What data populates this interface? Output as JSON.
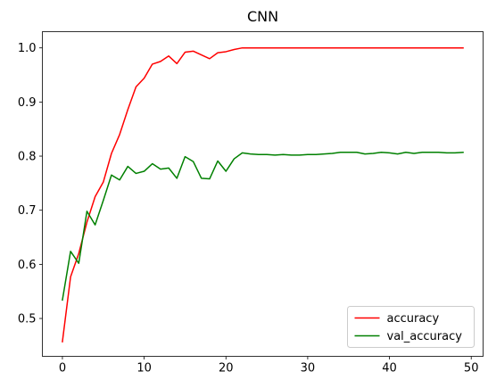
{
  "chart_data": {
    "type": "line",
    "title": "CNN",
    "xlabel": "",
    "ylabel": "",
    "xlim": [
      -2.45,
      51.45
    ],
    "ylim": [
      0.43,
      1.03
    ],
    "xticks": [
      0,
      10,
      20,
      30,
      40,
      50
    ],
    "yticks": [
      0.5,
      0.6,
      0.7,
      0.8,
      0.9,
      1.0
    ],
    "ytick_labels": [
      "0.5",
      "0.6",
      "0.7",
      "0.8",
      "0.9",
      "1.0"
    ],
    "grid": false,
    "legend": {
      "position": "lower-right"
    },
    "x": [
      0,
      1,
      2,
      3,
      4,
      5,
      6,
      7,
      8,
      9,
      10,
      11,
      12,
      13,
      14,
      15,
      16,
      17,
      18,
      19,
      20,
      21,
      22,
      23,
      24,
      25,
      26,
      27,
      28,
      29,
      30,
      31,
      32,
      33,
      34,
      35,
      36,
      37,
      38,
      39,
      40,
      41,
      42,
      43,
      44,
      45,
      46,
      47,
      48,
      49
    ],
    "series": [
      {
        "name": "accuracy",
        "color": "#ff0000",
        "values": [
          0.457,
          0.577,
          0.62,
          0.678,
          0.725,
          0.752,
          0.805,
          0.84,
          0.886,
          0.928,
          0.944,
          0.97,
          0.975,
          0.985,
          0.971,
          0.992,
          0.994,
          0.987,
          0.98,
          0.991,
          0.993,
          0.997,
          1.0,
          1.0,
          1.0,
          1.0,
          1.0,
          1.0,
          1.0,
          1.0,
          1.0,
          1.0,
          1.0,
          1.0,
          1.0,
          1.0,
          1.0,
          1.0,
          1.0,
          1.0,
          1.0,
          1.0,
          1.0,
          1.0,
          1.0,
          1.0,
          1.0,
          1.0,
          1.0,
          1.0
        ]
      },
      {
        "name": "val_accuracy",
        "color": "#008000",
        "values": [
          0.534,
          0.624,
          0.602,
          0.698,
          0.673,
          0.718,
          0.765,
          0.756,
          0.781,
          0.768,
          0.772,
          0.786,
          0.776,
          0.778,
          0.759,
          0.799,
          0.79,
          0.759,
          0.758,
          0.791,
          0.772,
          0.795,
          0.806,
          0.804,
          0.803,
          0.803,
          0.802,
          0.803,
          0.802,
          0.802,
          0.803,
          0.803,
          0.804,
          0.805,
          0.807,
          0.807,
          0.807,
          0.804,
          0.805,
          0.807,
          0.806,
          0.804,
          0.807,
          0.805,
          0.807,
          0.807,
          0.807,
          0.806,
          0.806,
          0.807
        ]
      }
    ]
  }
}
